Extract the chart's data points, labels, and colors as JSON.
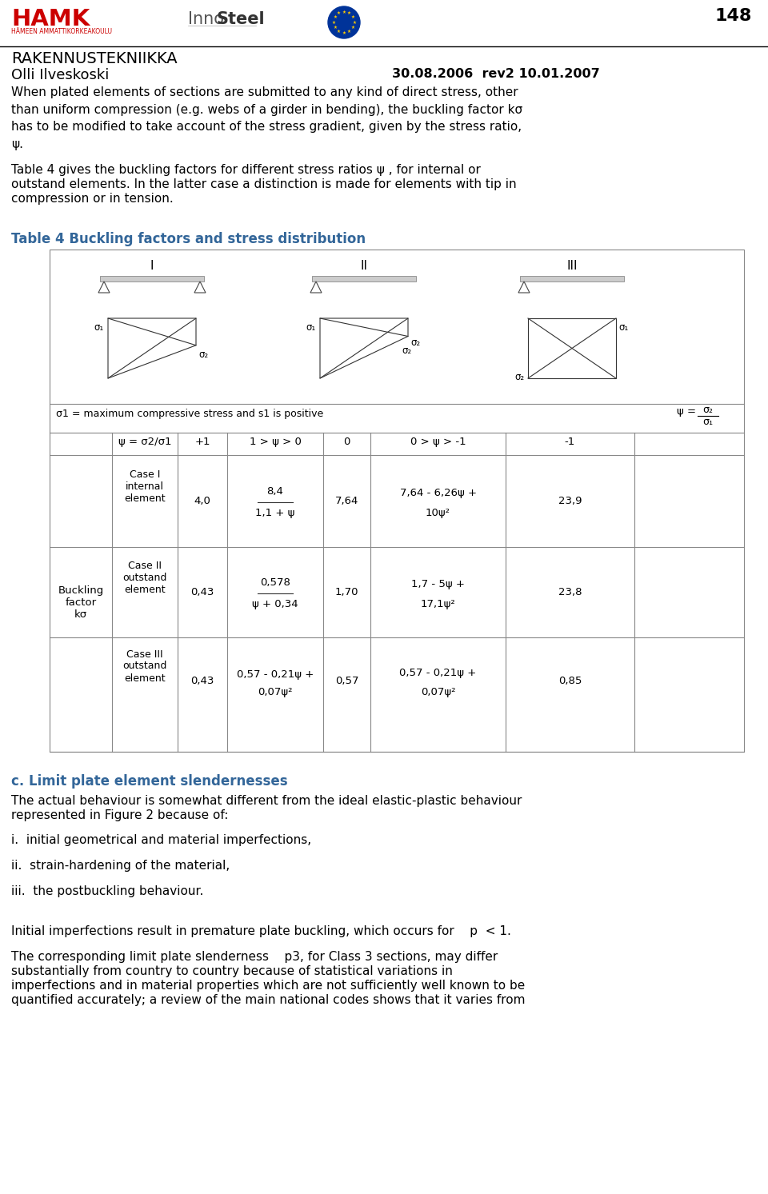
{
  "page_number": "148",
  "header_title": "RAKENNUSTEKNIIKKA",
  "header_subtitle": "Olli Ilveskoski",
  "header_date": "30.08.2006  rev2 10.01.2007",
  "bg_color": "#ffffff",
  "text_color": "#000000",
  "intro_text": "When plated elements of sections are submitted to any kind of direct stress, other\nthan uniform compression (e.g. webs of a girder in bending), the buckling factor kσ\nhas to be modified to take account of the stress gradient, given by the stress ratio,\nψ.",
  "para1_line1": "Table 4 gives the buckling factors for different stress ratios ψ , for internal or",
  "para1_line2": "outstand elements. In the latter case a distinction is made for elements with tip in",
  "para1_line3": "compression or in tension.",
  "table_title": "Table 4 Buckling factors and stress distribution",
  "note_text": "σ1 = maximum compressive stress and s1 is positive",
  "col_headers": [
    "ψ = σ2/σ1",
    "+1",
    "1 > ψ > 0",
    "0",
    "0 > ψ > -1",
    "-1"
  ],
  "row_label_lines": [
    "Buckling",
    "factor",
    "kσ"
  ],
  "cases": [
    {
      "case_label": "Case I\ninternal\nelement",
      "v0": "4,0",
      "v1_num": "8,4",
      "v1_den": "1,1 + ψ",
      "v2": "7,64",
      "v3_l1": "7,64 - 6,26ψ +",
      "v3_l2": "10ψ²",
      "v4": "23,9"
    },
    {
      "case_label": "Case II\noutstand\nelement",
      "v0": "0,43",
      "v1_num": "0,578",
      "v1_den": "ψ + 0,34",
      "v2": "1,70",
      "v3_l1": "1,7 - 5ψ +",
      "v3_l2": "17,1ψ²",
      "v4": "23,8"
    },
    {
      "case_label": "Case III\noutstand\nelement",
      "v0": "0,43",
      "v1_l1": "0,57 - 0,21ψ +",
      "v1_l2": "0,07ψ²",
      "v2": "0,57",
      "v3_l1": "0,57 - 0,21ψ +",
      "v3_l2": "0,07ψ²",
      "v4": "0,85"
    }
  ],
  "section_c_title": "c. Limit plate element slendernesses",
  "section_c_text1a": "The actual behaviour is somewhat different from the ideal elastic-plastic behaviour",
  "section_c_text1b": "represented in Figure 2 because of:",
  "section_c_items": [
    "i.  initial geometrical and material imperfections,",
    "ii.  strain-hardening of the material,",
    "iii.  the postbuckling behaviour."
  ],
  "section_c_text2": "Initial imperfections result in premature plate buckling, which occurs for    p  < 1.",
  "section_c_text3a": "The corresponding limit plate slenderness    p3, for Class 3 sections, may differ",
  "section_c_text3b": "substantially from country to country because of statistical variations in",
  "section_c_text3c": "imperfections and in material properties which are not sufficiently well known to be",
  "section_c_text3d": "quantified accurately; a review of the main national codes shows that it varies from"
}
